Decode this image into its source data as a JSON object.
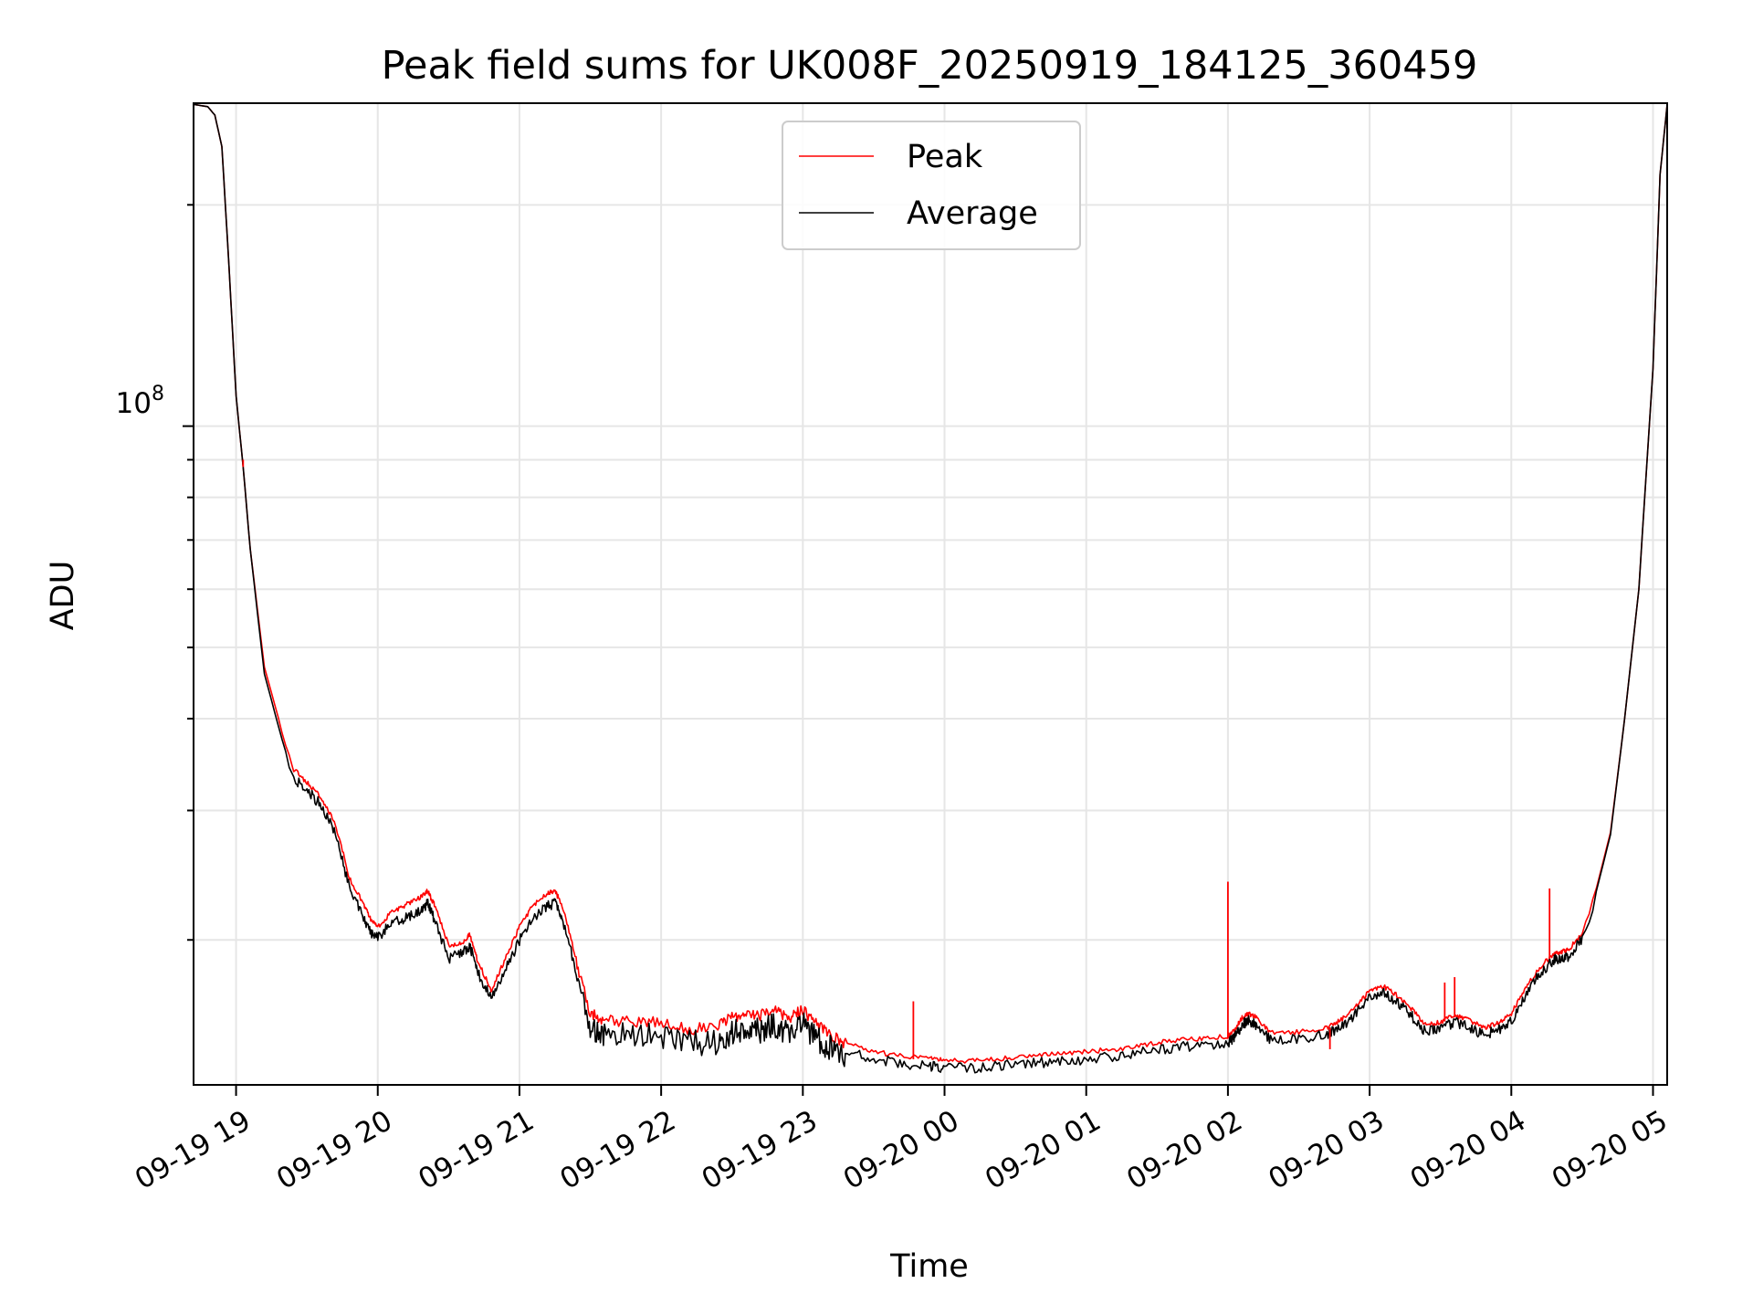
{
  "chart_data": {
    "type": "line",
    "title": "Peak field sums for UK008F_20250919_184125_360459",
    "xlabel": "Time",
    "ylabel": "ADU",
    "yscale": "log",
    "ylim": [
      12700000,
      275000000
    ],
    "xlim": [
      -0.3,
      10.1
    ],
    "grid": true,
    "legend_position": "top-center",
    "x_ticks": [
      0,
      1,
      2,
      3,
      4,
      5,
      6,
      7,
      8,
      9,
      10
    ],
    "x_tick_labels": [
      "09-19 19",
      "09-19 20",
      "09-19 21",
      "09-19 22",
      "09-19 23",
      "09-20 00",
      "09-20 01",
      "09-20 02",
      "09-20 03",
      "09-20 04",
      "09-20 05"
    ],
    "y_ticks": [
      100000000
    ],
    "y_tick_labels": [
      "10^8"
    ],
    "y_minor_ticks": [
      20000000,
      30000000,
      40000000,
      50000000,
      60000000,
      70000000,
      80000000,
      90000000,
      200000000
    ],
    "colors": {
      "peak": "#ff0000",
      "average": "#000000",
      "grid": "#e6e6e6",
      "legend_border": "#cccccc"
    },
    "series": [
      {
        "name": "Peak",
        "color": "#ff0000",
        "x": [
          -0.3,
          -0.2,
          -0.15,
          -0.1,
          -0.05,
          0,
          0.05,
          0.1,
          0.2,
          0.3,
          0.4,
          0.5,
          0.6,
          0.7,
          0.8,
          0.9,
          0.95,
          1.0,
          1.1,
          1.2,
          1.3,
          1.35,
          1.4,
          1.5,
          1.6,
          1.65,
          1.7,
          1.8,
          1.9,
          2.0,
          2.1,
          2.2,
          2.25,
          2.3,
          2.4,
          2.5,
          2.6,
          2.8,
          3.0,
          3.2,
          3.4,
          3.5,
          3.6,
          3.7,
          3.8,
          3.9,
          4.0,
          4.1,
          4.2,
          4.3,
          4.5,
          4.7,
          4.9,
          5.0,
          5.2,
          5.4,
          5.6,
          5.8,
          6.0,
          6.2,
          6.4,
          6.6,
          6.8,
          7.0,
          7.05,
          7.1,
          7.15,
          7.2,
          7.3,
          7.5,
          7.7,
          7.8,
          7.9,
          8.0,
          8.1,
          8.2,
          8.3,
          8.4,
          8.5,
          8.6,
          8.7,
          8.8,
          8.9,
          9.0,
          9.1,
          9.2,
          9.3,
          9.35,
          9.4,
          9.5,
          9.6,
          9.7,
          9.8,
          9.9,
          10.0,
          10.05,
          10.1
        ],
        "values": [
          274000000,
          272000000,
          265000000,
          240000000,
          165000000,
          110000000,
          88000000,
          68000000,
          47000000,
          40000000,
          34500000,
          33000000,
          31500000,
          29000000,
          24500000,
          22500000,
          21500000,
          21000000,
          22000000,
          22500000,
          23000000,
          23500000,
          22500000,
          19800000,
          20000000,
          20500000,
          19000000,
          17200000,
          19000000,
          21000000,
          22500000,
          23300000,
          23500000,
          22500000,
          19000000,
          16200000,
          15800000,
          15800000,
          15700000,
          15400000,
          15500000,
          16000000,
          16200000,
          16100000,
          16300000,
          15900000,
          16400000,
          15600000,
          15100000,
          14700000,
          14200000,
          14000000,
          13900000,
          13800000,
          13800000,
          13900000,
          14000000,
          14100000,
          14200000,
          14300000,
          14500000,
          14700000,
          14800000,
          14900000,
          15200000,
          15800000,
          16000000,
          15800000,
          15100000,
          15100000,
          15300000,
          15700000,
          16300000,
          17200000,
          17400000,
          16900000,
          16200000,
          15400000,
          15600000,
          15900000,
          15700000,
          15300000,
          15500000,
          16000000,
          17300000,
          18500000,
          19300000,
          19400000,
          19500000,
          20600000,
          23500000,
          28000000,
          40000000,
          60000000,
          120000000,
          220000000,
          274000000
        ]
      },
      {
        "name": "Average",
        "color": "#000000",
        "x": [
          -0.3,
          -0.2,
          -0.15,
          -0.1,
          -0.05,
          0,
          0.05,
          0.1,
          0.2,
          0.3,
          0.4,
          0.5,
          0.6,
          0.7,
          0.8,
          0.9,
          0.95,
          1.0,
          1.1,
          1.2,
          1.3,
          1.35,
          1.4,
          1.5,
          1.6,
          1.65,
          1.7,
          1.8,
          1.9,
          2.0,
          2.1,
          2.2,
          2.25,
          2.3,
          2.4,
          2.5,
          2.6,
          2.8,
          3.0,
          3.2,
          3.4,
          3.5,
          3.6,
          3.7,
          3.8,
          3.9,
          4.0,
          4.1,
          4.2,
          4.3,
          4.5,
          4.7,
          4.9,
          5.0,
          5.2,
          5.4,
          5.6,
          5.8,
          6.0,
          6.2,
          6.4,
          6.6,
          6.8,
          7.0,
          7.05,
          7.1,
          7.15,
          7.2,
          7.3,
          7.5,
          7.7,
          7.8,
          7.9,
          8.0,
          8.1,
          8.2,
          8.3,
          8.4,
          8.5,
          8.6,
          8.7,
          8.8,
          8.9,
          9.0,
          9.1,
          9.2,
          9.3,
          9.35,
          9.4,
          9.5,
          9.6,
          9.7,
          9.8,
          9.9,
          10.0,
          10.05,
          10.1
        ],
        "values": [
          274000000,
          272000000,
          265000000,
          240000000,
          165000000,
          110000000,
          88000000,
          68000000,
          46000000,
          39000000,
          33800000,
          32500000,
          31000000,
          28500000,
          23900000,
          21800000,
          20800000,
          20500000,
          21400000,
          21800000,
          22300000,
          22800000,
          21700000,
          19200000,
          19500000,
          20000000,
          18500000,
          16900000,
          18500000,
          20300000,
          21800000,
          22600000,
          22800000,
          21800000,
          18500000,
          15800000,
          15500000,
          15500000,
          15400000,
          15100000,
          15100000,
          15600000,
          15800000,
          15700000,
          15900000,
          15500000,
          16000000,
          15300000,
          14800000,
          14400000,
          14000000,
          13800000,
          13700000,
          13600000,
          13600000,
          13700000,
          13800000,
          13900000,
          14000000,
          14100000,
          14300000,
          14500000,
          14600000,
          14700000,
          15000000,
          15600000,
          15800000,
          15600000,
          14900000,
          14900000,
          15100000,
          15500000,
          16100000,
          17000000,
          17200000,
          16700000,
          16000000,
          15200000,
          15400000,
          15700000,
          15500000,
          15100000,
          15300000,
          15800000,
          17100000,
          18300000,
          19100000,
          19200000,
          19300000,
          20400000,
          23300000,
          27800000,
          40000000,
          60000000,
          120000000,
          220000000,
          274000000
        ]
      }
    ],
    "spikes": [
      {
        "x": 0.05,
        "value": 90000000,
        "series": "Peak"
      },
      {
        "x": 7.0,
        "value": 24000000,
        "series": "Peak"
      },
      {
        "x": 4.78,
        "value": 16500000,
        "series": "Peak"
      },
      {
        "x": 7.72,
        "value": 14200000,
        "series": "Peak"
      },
      {
        "x": 8.53,
        "value": 17500000,
        "series": "Peak"
      },
      {
        "x": 8.6,
        "value": 17800000,
        "series": "Peak"
      },
      {
        "x": 9.27,
        "value": 23500000,
        "series": "Peak"
      }
    ]
  },
  "legend": [
    {
      "label": "Peak",
      "color": "#ff0000"
    },
    {
      "label": "Average",
      "color": "#000000"
    }
  ]
}
